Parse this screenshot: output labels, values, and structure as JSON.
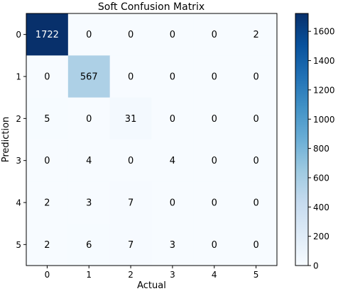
{
  "chart_data": {
    "type": "heatmap",
    "title": "Soft Confusion Matrix",
    "xlabel": "Actual",
    "ylabel": "Prediction",
    "x_categories": [
      "0",
      "1",
      "2",
      "3",
      "4",
      "5"
    ],
    "y_categories": [
      "0",
      "1",
      "2",
      "3",
      "4",
      "5"
    ],
    "values": [
      [
        1722,
        0,
        0,
        0,
        0,
        2
      ],
      [
        0,
        567,
        0,
        0,
        0,
        0
      ],
      [
        5,
        0,
        31,
        0,
        0,
        0
      ],
      [
        0,
        4,
        0,
        4,
        0,
        0
      ],
      [
        2,
        3,
        7,
        0,
        0,
        0
      ],
      [
        2,
        6,
        7,
        3,
        0,
        0
      ]
    ],
    "colormap": "Blues",
    "color_range": [
      0,
      1722
    ],
    "colorbar_ticks": [
      0,
      200,
      400,
      600,
      800,
      1000,
      1200,
      1400,
      1600
    ],
    "grid": false,
    "colorbar_position": "right"
  }
}
